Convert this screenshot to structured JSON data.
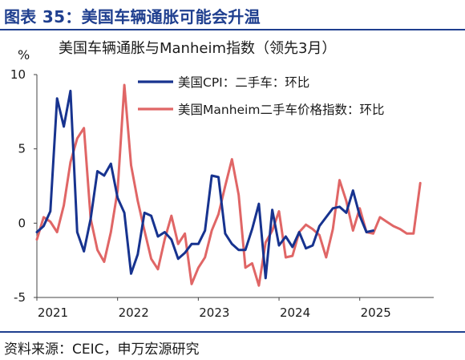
{
  "figure": {
    "title": "图表 35：美国车辆通胀可能会升温",
    "source": "资料来源：CEIC，申万宏源研究"
  },
  "colors": {
    "brand_blue": "#1f3f8f",
    "series_cpi": "#17338f",
    "series_manheim": "#e06666"
  },
  "chart_data": {
    "type": "line",
    "title": "美国车辆通胀与Manheim指数（领先3月）",
    "ylabel": "%",
    "ylim": [
      -5,
      10
    ],
    "yticks": [
      -5,
      0,
      5,
      10
    ],
    "xlim": [
      "2021-01",
      "2025-12"
    ],
    "xticks": [
      {
        "x": "2021-01",
        "label": "2021"
      },
      {
        "x": "2022-01",
        "label": "2022"
      },
      {
        "x": "2023-01",
        "label": "2023"
      },
      {
        "x": "2024-01",
        "label": "2024"
      },
      {
        "x": "2025-01",
        "label": "2025"
      }
    ],
    "legend_position": "top-right",
    "grid": false,
    "series": [
      {
        "name": "美国CPI：二手车：环比",
        "color": "#17338f",
        "points": [
          [
            "2021-01",
            -0.6
          ],
          [
            "2021-02",
            -0.2
          ],
          [
            "2021-03",
            0.8
          ],
          [
            "2021-04",
            8.4
          ],
          [
            "2021-05",
            6.5
          ],
          [
            "2021-06",
            8.9
          ],
          [
            "2021-07",
            -0.6
          ],
          [
            "2021-08",
            -1.9
          ],
          [
            "2021-09",
            0.3
          ],
          [
            "2021-10",
            3.5
          ],
          [
            "2021-11",
            3.2
          ],
          [
            "2021-12",
            4.0
          ],
          [
            "2022-01",
            1.7
          ],
          [
            "2022-02",
            0.7
          ],
          [
            "2022-03",
            -3.4
          ],
          [
            "2022-04",
            -2.1
          ],
          [
            "2022-05",
            0.7
          ],
          [
            "2022-06",
            0.5
          ],
          [
            "2022-07",
            -0.9
          ],
          [
            "2022-08",
            -0.6
          ],
          [
            "2022-09",
            -1.1
          ],
          [
            "2022-10",
            -2.4
          ],
          [
            "2022-11",
            -2.0
          ],
          [
            "2022-12",
            -1.4
          ],
          [
            "2023-01",
            -1.4
          ],
          [
            "2023-02",
            -0.5
          ],
          [
            "2023-03",
            3.2
          ],
          [
            "2023-04",
            3.1
          ],
          [
            "2023-05",
            -0.7
          ],
          [
            "2023-06",
            -1.4
          ],
          [
            "2023-07",
            -1.8
          ],
          [
            "2023-08",
            -1.8
          ],
          [
            "2023-09",
            -0.4
          ],
          [
            "2023-10",
            1.3
          ],
          [
            "2023-11",
            -3.7
          ],
          [
            "2023-12",
            0.9
          ],
          [
            "2024-01",
            -1.5
          ],
          [
            "2024-02",
            -0.9
          ],
          [
            "2024-03",
            -1.6
          ],
          [
            "2024-04",
            -0.6
          ],
          [
            "2024-05",
            -1.7
          ],
          [
            "2024-06",
            -1.5
          ],
          [
            "2024-07",
            -0.2
          ],
          [
            "2024-08",
            0.4
          ],
          [
            "2024-09",
            1.0
          ],
          [
            "2024-10",
            1.1
          ],
          [
            "2024-11",
            0.7
          ],
          [
            "2024-12",
            2.2
          ],
          [
            "2025-01",
            0.5
          ],
          [
            "2025-02",
            -0.6
          ],
          [
            "2025-03",
            -0.5
          ]
        ]
      },
      {
        "name": "美国Manheim二手车价格指数：环比",
        "color": "#e06666",
        "points": [
          [
            "2021-01",
            -1.1
          ],
          [
            "2021-02",
            0.4
          ],
          [
            "2021-03",
            0.1
          ],
          [
            "2021-04",
            -0.6
          ],
          [
            "2021-05",
            1.2
          ],
          [
            "2021-06",
            4.1
          ],
          [
            "2021-07",
            5.7
          ],
          [
            "2021-08",
            6.4
          ],
          [
            "2021-09",
            0.3
          ],
          [
            "2021-10",
            -1.8
          ],
          [
            "2021-11",
            -2.6
          ],
          [
            "2021-12",
            -0.6
          ],
          [
            "2022-01",
            2.2
          ],
          [
            "2022-02",
            9.3
          ],
          [
            "2022-03",
            3.9
          ],
          [
            "2022-04",
            1.5
          ],
          [
            "2022-05",
            -0.5
          ],
          [
            "2022-06",
            -2.4
          ],
          [
            "2022-07",
            -3.1
          ],
          [
            "2022-08",
            -1.1
          ],
          [
            "2022-09",
            0.5
          ],
          [
            "2022-10",
            -1.4
          ],
          [
            "2022-11",
            -0.7
          ],
          [
            "2022-12",
            -4.1
          ],
          [
            "2023-01",
            -3.0
          ],
          [
            "2023-02",
            -2.3
          ],
          [
            "2023-03",
            -0.5
          ],
          [
            "2023-04",
            0.6
          ],
          [
            "2023-05",
            2.5
          ],
          [
            "2023-06",
            4.3
          ],
          [
            "2023-07",
            1.9
          ],
          [
            "2023-08",
            -3.0
          ],
          [
            "2023-09",
            -2.7
          ],
          [
            "2023-10",
            -4.2
          ],
          [
            "2023-11",
            -1.3
          ],
          [
            "2023-12",
            -0.5
          ],
          [
            "2024-01",
            0.8
          ],
          [
            "2024-02",
            -2.3
          ],
          [
            "2024-03",
            -2.2
          ],
          [
            "2024-04",
            -0.6
          ],
          [
            "2024-05",
            -0.1
          ],
          [
            "2024-06",
            -0.4
          ],
          [
            "2024-07",
            -0.8
          ],
          [
            "2024-08",
            -2.3
          ],
          [
            "2024-09",
            -0.4
          ],
          [
            "2024-10",
            2.9
          ],
          [
            "2024-11",
            1.5
          ],
          [
            "2024-12",
            -0.5
          ],
          [
            "2025-01",
            1.0
          ],
          [
            "2025-02",
            -0.6
          ],
          [
            "2025-03",
            -0.7
          ],
          [
            "2025-04",
            0.4
          ],
          [
            "2025-05",
            0.1
          ],
          [
            "2025-06",
            -0.2
          ],
          [
            "2025-07",
            -0.4
          ],
          [
            "2025-08",
            -0.7
          ],
          [
            "2025-09",
            -0.7
          ],
          [
            "2025-10",
            2.7
          ]
        ]
      }
    ]
  }
}
